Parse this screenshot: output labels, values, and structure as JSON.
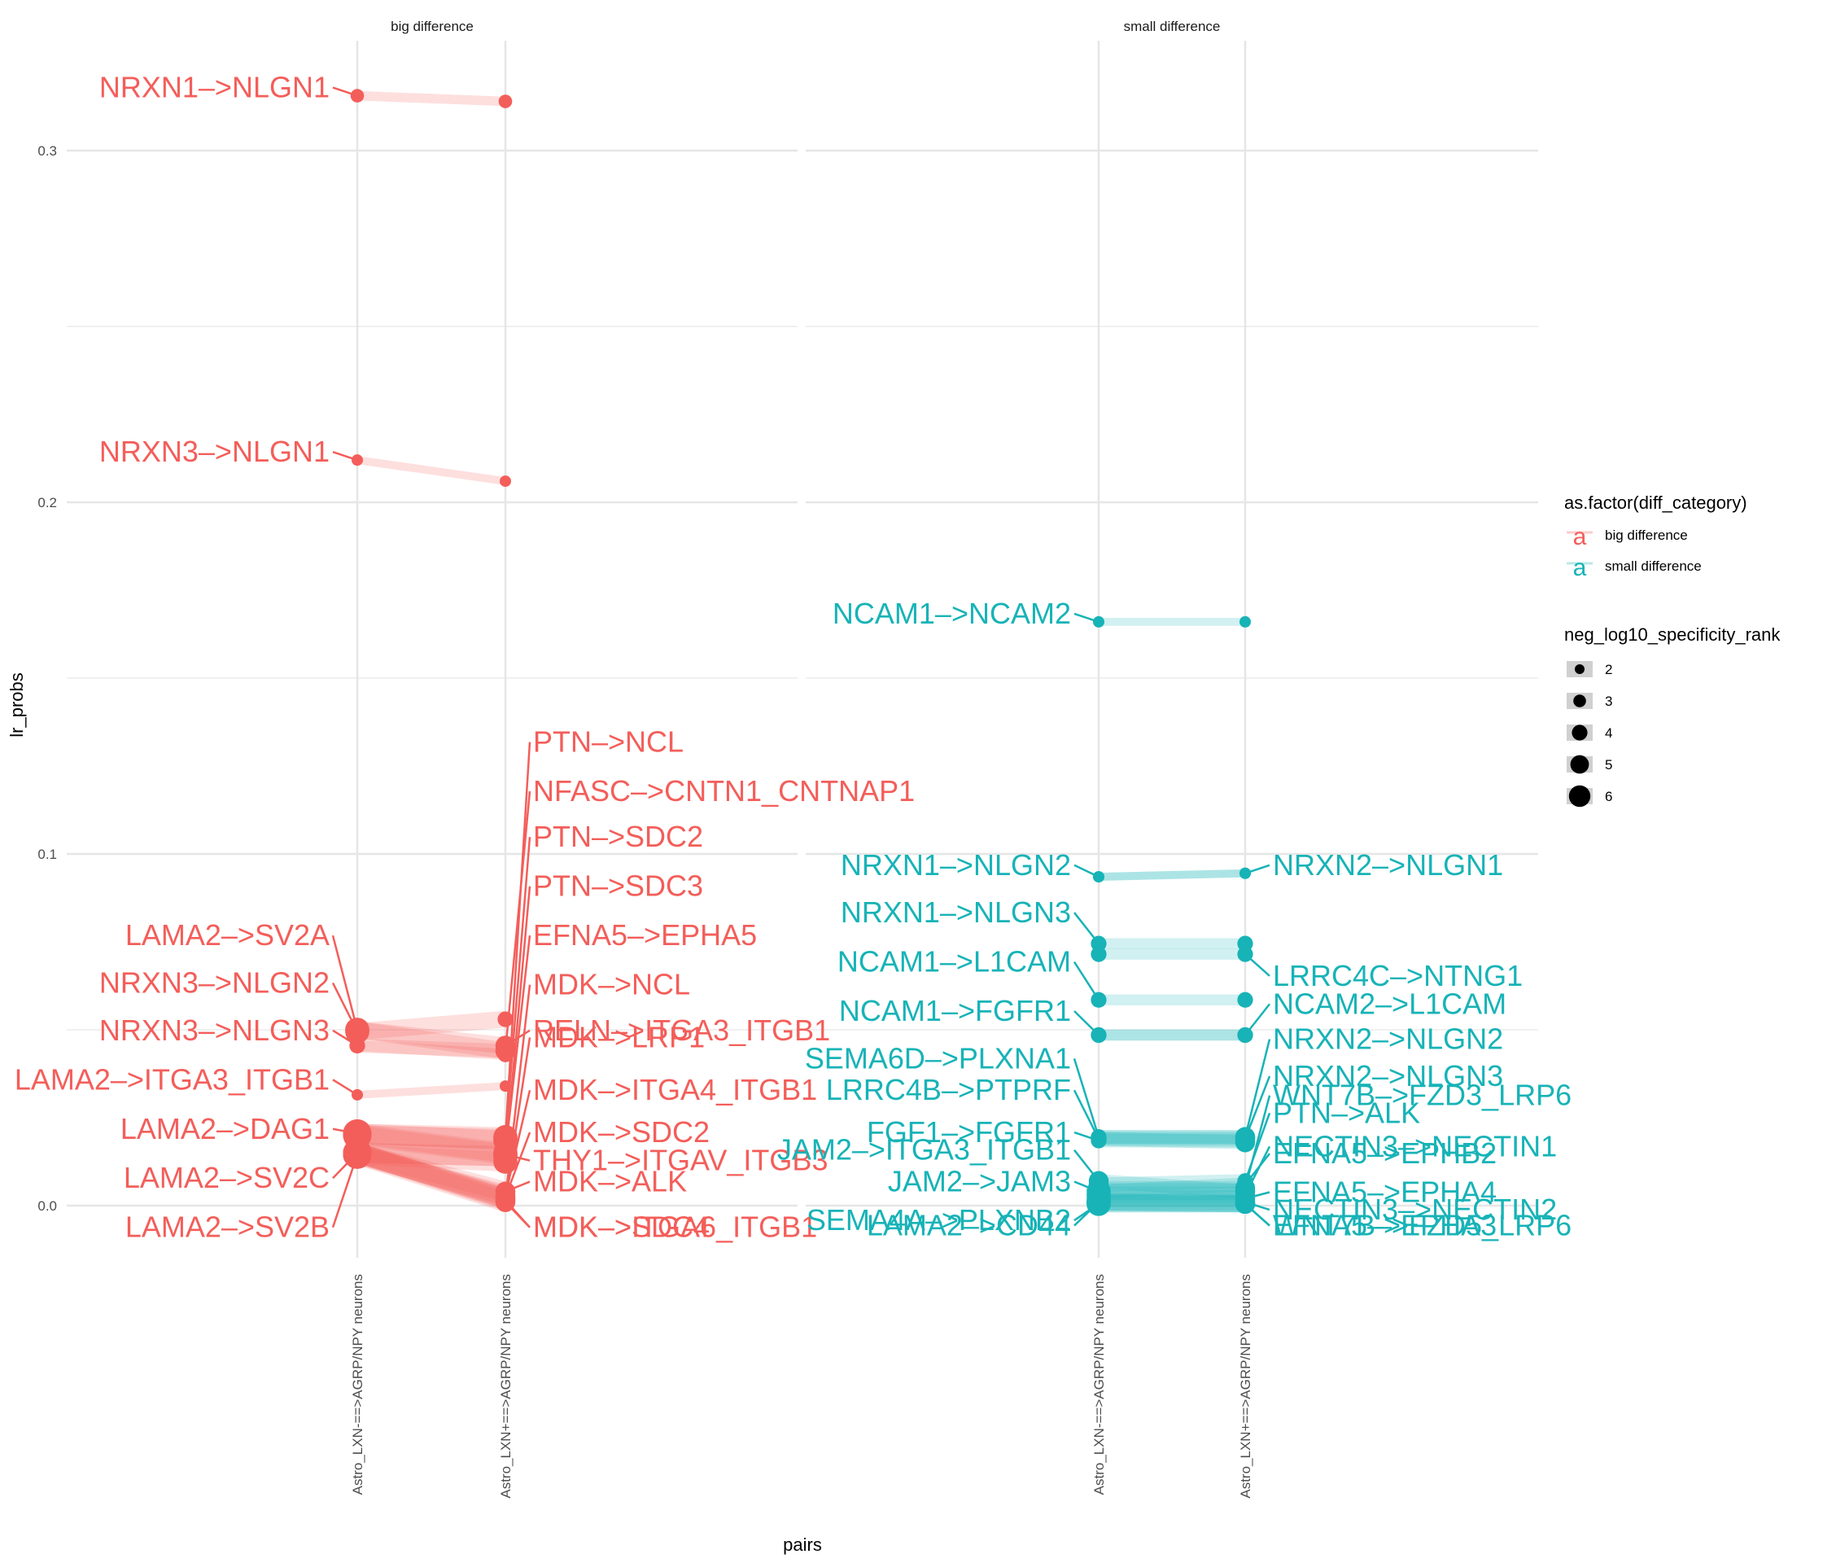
{
  "chart_data": {
    "type": "scatter",
    "subtype": "faceted slope chart with repelled labels",
    "xlabel": "pairs",
    "ylabel": "lr_probs",
    "ylim": [
      -0.012,
      0.325
    ],
    "yticks": [
      0.0,
      0.1,
      0.2,
      0.3
    ],
    "grid": true,
    "x_categories": [
      "Astro_LXN-==>AGRP/NPY neurons",
      "Astro_LXN+==>AGRP/NPY neurons"
    ],
    "colors": {
      "big difference": "#F35E5A",
      "small difference": "#17B3B7"
    },
    "facets": [
      {
        "name": "big difference",
        "series": [
          {
            "label": "NRXN1->NLGN1",
            "values": [
              0.3156,
              0.314
            ],
            "size": [
              2.5,
              2.5
            ],
            "label_side": "left",
            "label_y": 0.3156
          },
          {
            "label": "NRXN3->NLGN1",
            "values": [
              0.212,
              0.206
            ],
            "size": [
              2,
              2
            ],
            "label_side": "left",
            "label_y": 0.212
          },
          {
            "label": "LAMA2->SV2A",
            "values": [
              0.05,
              0.044
            ],
            "size": [
              5,
              4
            ],
            "label_side": "left",
            "label_y": 0.0745
          },
          {
            "label": "NRXN3->NLGN2",
            "values": [
              0.0495,
              0.053
            ],
            "size": [
              5,
              3
            ],
            "label_side": "left",
            "label_y": 0.061
          },
          {
            "label": "NRXN3->NLGN3",
            "values": [
              0.0455,
              0.043
            ],
            "size": [
              3,
              3
            ],
            "label_side": "left",
            "label_y": 0.0475
          },
          {
            "label": "LAMA2->ITGA3_ITGB1",
            "values": [
              0.0315,
              0.034
            ],
            "size": [
              2,
              2
            ],
            "label_side": "left",
            "label_y": 0.0335
          },
          {
            "label": "LAMA2->DAG1",
            "values": [
              0.0205,
              0.0185
            ],
            "size": [
              6,
              5
            ],
            "label_side": "left",
            "label_y": 0.0195
          },
          {
            "label": "LAMA2->SV2C",
            "values": [
              0.015,
              0.014
            ],
            "size": [
              6,
              5
            ],
            "label_side": "left",
            "label_y": 0.0055
          },
          {
            "label": "LAMA2->SV2B",
            "values": [
              0.0145,
              0.0125
            ],
            "size": [
              6,
              5
            ],
            "label_side": "left",
            "label_y": -0.0085
          },
          {
            "label": "PTN->NCL",
            "values": [
              0.0205,
              0.0195
            ],
            "size": [
              6,
              5
            ],
            "label_side": "right",
            "label_y": 0.1295
          },
          {
            "label": "NFASC->CNTN1_CNTNAP1",
            "values": [
              0.0455,
              0.044
            ],
            "size": [
              3,
              4
            ],
            "label_side": "right",
            "label_y": 0.1155
          },
          {
            "label": "PTN->SDC2",
            "values": [
              0.02,
              0.019
            ],
            "size": [
              6,
              5
            ],
            "label_side": "right",
            "label_y": 0.1025
          },
          {
            "label": "PTN->SDC3",
            "values": [
              0.015,
              0.014
            ],
            "size": [
              6,
              5
            ],
            "label_side": "right",
            "label_y": 0.0885
          },
          {
            "label": "EFNA5->EPHA5",
            "values": [
              0.0205,
              0.015
            ],
            "size": [
              6,
              5
            ],
            "label_side": "right",
            "label_y": 0.0745
          },
          {
            "label": "MDK->NCL",
            "values": [
              0.015,
              0.002
            ],
            "size": [
              6,
              4
            ],
            "label_side": "right",
            "label_y": 0.0605
          },
          {
            "label": "RELN->ITGA3_ITGB1",
            "values": [
              0.05,
              0.0455
            ],
            "size": [
              5,
              4
            ],
            "label_side": "right",
            "label_y": 0.0475
          },
          {
            "label": "MDK->LRP1",
            "values": [
              0.015,
              0.002
            ],
            "size": [
              6,
              4
            ],
            "label_side": "right",
            "label_y": 0.0455
          },
          {
            "label": "MDK->ITGA4_ITGB1",
            "values": [
              0.0145,
              0.003
            ],
            "size": [
              6,
              4
            ],
            "label_side": "right",
            "label_y": 0.0305
          },
          {
            "label": "MDK->SDC2",
            "values": [
              0.015,
              0.0025
            ],
            "size": [
              6,
              4
            ],
            "label_side": "right",
            "label_y": 0.0185
          },
          {
            "label": "THY1->ITGAV_ITGB3",
            "values": [
              0.02,
              0.0145
            ],
            "size": [
              6,
              5
            ],
            "label_side": "right",
            "label_y": 0.0105
          },
          {
            "label": "MDK->ALK",
            "values": [
              0.015,
              0.004
            ],
            "size": [
              6,
              4
            ],
            "label_side": "right",
            "label_y": 0.0045
          },
          {
            "label": "MDK->ITGA6_ITGB1",
            "values": [
              0.0145,
              0.001
            ],
            "size": [
              6,
              4
            ],
            "label_side": "right",
            "label_y": -0.0085
          },
          {
            "label": "MDK->SDC4",
            "values": [
              0.015,
              0.0015
            ],
            "size": [
              6,
              4
            ],
            "label_side": "right",
            "label_y": -0.0085
          }
        ]
      },
      {
        "name": "small difference",
        "series": [
          {
            "label": "NCAM1->NCAM2",
            "values": [
              0.166,
              0.166
            ],
            "size": [
              2,
              2
            ],
            "label_side": "left",
            "label_y": 0.166
          },
          {
            "label": "NRXN1->NLGN2",
            "values": [
              0.0935,
              0.0945
            ],
            "size": [
              2,
              2
            ],
            "label_side": "left",
            "label_y": 0.0945
          },
          {
            "label": "NRXN2->NLGN1",
            "values": [
              0.0935,
              0.0945
            ],
            "size": [
              2,
              2
            ],
            "label_side": "right",
            "label_y": 0.0945
          },
          {
            "label": "NRXN1->NLGN3",
            "values": [
              0.0745,
              0.0745
            ],
            "size": [
              3,
              3
            ],
            "label_side": "left",
            "label_y": 0.081
          },
          {
            "label": "LRRC4C->NTNG1",
            "values": [
              0.0715,
              0.0715
            ],
            "size": [
              3,
              3
            ],
            "label_side": "right",
            "label_y": 0.063
          },
          {
            "label": "NCAM1->L1CAM",
            "values": [
              0.0585,
              0.0585
            ],
            "size": [
              3,
              3
            ],
            "label_side": "left",
            "label_y": 0.067
          },
          {
            "label": "NCAM2->L1CAM",
            "values": [
              0.0485,
              0.0485
            ],
            "size": [
              3,
              3
            ],
            "label_side": "right",
            "label_y": 0.055
          },
          {
            "label": "NCAM1->FGFR1",
            "values": [
              0.0485,
              0.0485
            ],
            "size": [
              3,
              3
            ],
            "label_side": "left",
            "label_y": 0.053
          },
          {
            "label": "NRXN2->NLGN2",
            "values": [
              0.0195,
              0.0195
            ],
            "size": [
              3,
              4
            ],
            "label_side": "right",
            "label_y": 0.045
          },
          {
            "label": "SEMA6D->PLXNA1",
            "values": [
              0.0195,
              0.0195
            ],
            "size": [
              3,
              4
            ],
            "label_side": "left",
            "label_y": 0.0395
          },
          {
            "label": "NRXN2->NLGN3",
            "values": [
              0.019,
              0.019
            ],
            "size": [
              3,
              4
            ],
            "label_side": "right",
            "label_y": 0.0345
          },
          {
            "label": "LRRC4B->PTPRF",
            "values": [
              0.019,
              0.018
            ],
            "size": [
              3,
              4
            ],
            "label_side": "left",
            "label_y": 0.0305
          },
          {
            "label": "WNT7B->FZD3_LRP6",
            "values": [
              0.005,
              0.005
            ],
            "size": [
              4,
              4
            ],
            "label_side": "right",
            "label_y": 0.029
          },
          {
            "label": "PTN->ALK",
            "values": [
              0.006,
              0.007
            ],
            "size": [
              4,
              3
            ],
            "label_side": "right",
            "label_y": 0.024
          },
          {
            "label": "FGF1->FGFR1",
            "values": [
              0.0185,
              0.0185
            ],
            "size": [
              3,
              4
            ],
            "label_side": "left",
            "label_y": 0.0185
          },
          {
            "label": "NECTIN3->NECTIN1",
            "values": [
              0.003,
              0.003
            ],
            "size": [
              5,
              4
            ],
            "label_side": "right",
            "label_y": 0.0145
          },
          {
            "label": "JAM2->ITGA3_ITGB1",
            "values": [
              0.007,
              0.004
            ],
            "size": [
              4,
              4
            ],
            "label_side": "left",
            "label_y": 0.0135
          },
          {
            "label": "EFNA5->EPHB2",
            "values": [
              0.004,
              0.006
            ],
            "size": [
              4,
              3
            ],
            "label_side": "right",
            "label_y": 0.0125
          },
          {
            "label": "JAM2->JAM3",
            "values": [
              0.004,
              0.004
            ],
            "size": [
              5,
              4
            ],
            "label_side": "left",
            "label_y": 0.0045
          },
          {
            "label": "EFNA5->EPHA4",
            "values": [
              0.002,
              0.002
            ],
            "size": [
              5,
              4
            ],
            "label_side": "right",
            "label_y": 0.0015
          },
          {
            "label": "NECTIN3->NECTIN2",
            "values": [
              0.001,
              0.001
            ],
            "size": [
              5,
              4
            ],
            "label_side": "right",
            "label_y": -0.0035
          },
          {
            "label": "SEMA4A->PLXNB2",
            "values": [
              0.0005,
              0.0005
            ],
            "size": [
              5,
              4
            ],
            "label_side": "left",
            "label_y": -0.0065
          },
          {
            "label": "LAMA2->CD44",
            "values": [
              0.001,
              0.0005
            ],
            "size": [
              5,
              4
            ],
            "label_side": "left",
            "label_y": -0.008
          },
          {
            "label": "WNT7B->FZD5_LRP6",
            "values": [
              0.001,
              0.0005
            ],
            "size": [
              5,
              4
            ],
            "label_side": "right",
            "label_y": -0.008
          },
          {
            "label": "EFNA5->EPHA3",
            "values": [
              0.0005,
              0.0005
            ],
            "size": [
              5,
              4
            ],
            "label_side": "right",
            "label_y": -0.008
          }
        ]
      }
    ],
    "legends": [
      {
        "title": "as.factor(diff_category)",
        "position": "right",
        "entries": [
          {
            "label": "big difference",
            "color": "#F35E5A",
            "glyph": "a"
          },
          {
            "label": "small difference",
            "color": "#17B3B7",
            "glyph": "a"
          }
        ]
      },
      {
        "title": "neg_log10_specificity_rank",
        "position": "right",
        "entries": [
          {
            "label": "2",
            "value": 2
          },
          {
            "label": "3",
            "value": 3
          },
          {
            "label": "4",
            "value": 4
          },
          {
            "label": "5",
            "value": 5
          },
          {
            "label": "6",
            "value": 6
          }
        ]
      }
    ]
  }
}
